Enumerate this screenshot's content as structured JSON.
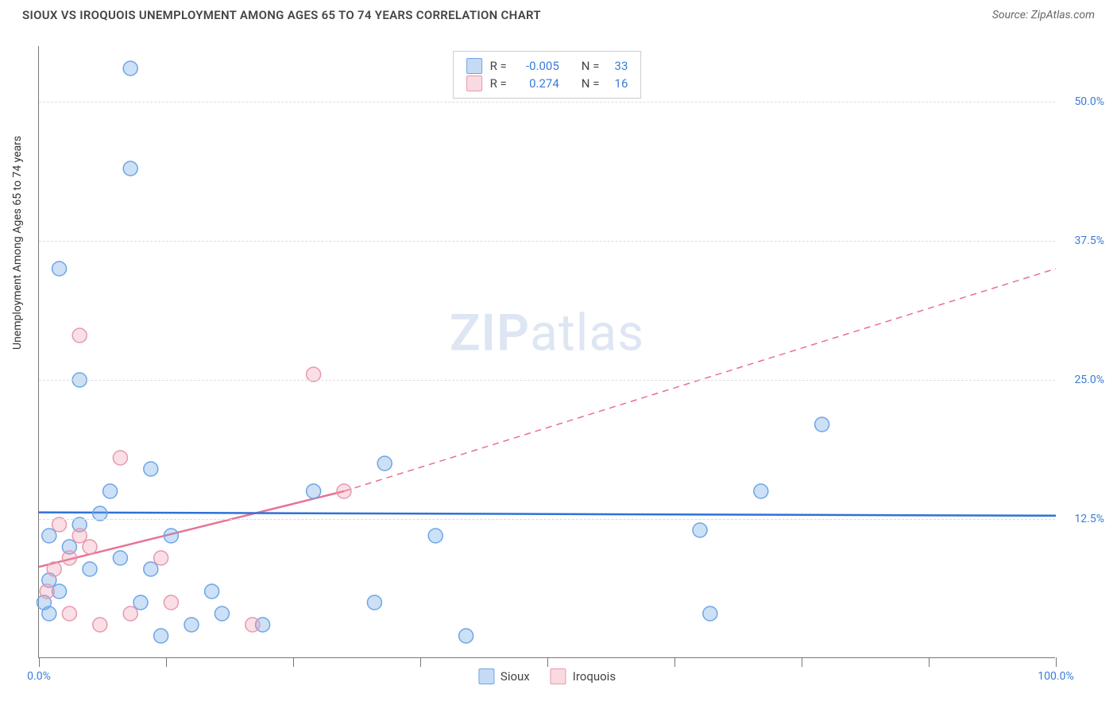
{
  "header": {
    "title": "SIOUX VS IROQUOIS UNEMPLOYMENT AMONG AGES 65 TO 74 YEARS CORRELATION CHART",
    "source": "Source: ZipAtlas.com"
  },
  "chart": {
    "type": "scatter",
    "y_label": "Unemployment Among Ages 65 to 74 years",
    "watermark": {
      "bold": "ZIP",
      "rest": "atlas"
    },
    "background_color": "#ffffff",
    "grid_color": "#dddddd",
    "axis_color": "#777777",
    "label_color": "#3b7dd8",
    "xlim": [
      0,
      100
    ],
    "ylim": [
      0,
      55
    ],
    "x_ticks": [
      {
        "pos": 0,
        "label": "0.0%"
      },
      {
        "pos": 12.5
      },
      {
        "pos": 25
      },
      {
        "pos": 37.5
      },
      {
        "pos": 50
      },
      {
        "pos": 62.5
      },
      {
        "pos": 75
      },
      {
        "pos": 87.5
      },
      {
        "pos": 100,
        "label": "100.0%"
      }
    ],
    "y_ticks": [
      {
        "pos": 12.5,
        "label": "12.5%"
      },
      {
        "pos": 25,
        "label": "25.0%"
      },
      {
        "pos": 37.5,
        "label": "37.5%"
      },
      {
        "pos": 50,
        "label": "50.0%"
      }
    ],
    "series": [
      {
        "name": "Sioux",
        "color_fill": "rgba(110,165,230,0.35)",
        "color_stroke": "#6ea5e6",
        "marker_radius": 9,
        "r_label": "R =",
        "r_value": "-0.005",
        "n_label": "N =",
        "n_value": "33",
        "trend": {
          "solid_start": {
            "x": 0,
            "y": 13.1
          },
          "solid_end": {
            "x": 100,
            "y": 12.8
          },
          "dash_start": null,
          "dash_end": null,
          "stroke": "#2f72d6",
          "width": 2.5
        },
        "points": [
          {
            "x": 2,
            "y": 35
          },
          {
            "x": 9,
            "y": 53
          },
          {
            "x": 9,
            "y": 44
          },
          {
            "x": 4,
            "y": 25
          },
          {
            "x": 7,
            "y": 15
          },
          {
            "x": 11,
            "y": 17
          },
          {
            "x": 27,
            "y": 15
          },
          {
            "x": 34,
            "y": 17.5
          },
          {
            "x": 39,
            "y": 11
          },
          {
            "x": 65,
            "y": 11.5
          },
          {
            "x": 71,
            "y": 15
          },
          {
            "x": 77,
            "y": 21
          },
          {
            "x": 66,
            "y": 4
          },
          {
            "x": 42,
            "y": 2
          },
          {
            "x": 33,
            "y": 5
          },
          {
            "x": 22,
            "y": 3
          },
          {
            "x": 18,
            "y": 4
          },
          {
            "x": 15,
            "y": 3
          },
          {
            "x": 12,
            "y": 2
          },
          {
            "x": 10,
            "y": 5
          },
          {
            "x": 13,
            "y": 11
          },
          {
            "x": 11,
            "y": 8
          },
          {
            "x": 8,
            "y": 9
          },
          {
            "x": 6,
            "y": 13
          },
          {
            "x": 4,
            "y": 12
          },
          {
            "x": 5,
            "y": 8
          },
          {
            "x": 3,
            "y": 10
          },
          {
            "x": 1,
            "y": 7
          },
          {
            "x": 2,
            "y": 6
          },
          {
            "x": 1,
            "y": 4
          },
          {
            "x": 0.5,
            "y": 5
          },
          {
            "x": 1,
            "y": 11
          },
          {
            "x": 17,
            "y": 6
          }
        ]
      },
      {
        "name": "Iroquois",
        "color_fill": "rgba(240,150,170,0.30)",
        "color_stroke": "#e898ae",
        "marker_radius": 9,
        "r_label": "R =",
        "r_value": "0.274",
        "n_label": "N =",
        "n_value": "16",
        "trend": {
          "solid_start": {
            "x": 0,
            "y": 8.2
          },
          "solid_end": {
            "x": 30,
            "y": 15
          },
          "dash_start": {
            "x": 30,
            "y": 15
          },
          "dash_end": {
            "x": 100,
            "y": 35
          },
          "stroke": "#e87192",
          "width": 2.5
        },
        "points": [
          {
            "x": 4,
            "y": 29
          },
          {
            "x": 27,
            "y": 25.5
          },
          {
            "x": 30,
            "y": 15
          },
          {
            "x": 8,
            "y": 18
          },
          {
            "x": 12,
            "y": 9
          },
          {
            "x": 21,
            "y": 3
          },
          {
            "x": 13,
            "y": 5
          },
          {
            "x": 9,
            "y": 4
          },
          {
            "x": 6,
            "y": 3
          },
          {
            "x": 3,
            "y": 4
          },
          {
            "x": 5,
            "y": 10
          },
          {
            "x": 3,
            "y": 9
          },
          {
            "x": 1.5,
            "y": 8
          },
          {
            "x": 4,
            "y": 11
          },
          {
            "x": 2,
            "y": 12
          },
          {
            "x": 0.8,
            "y": 6
          }
        ]
      }
    ],
    "legend": [
      {
        "swatch": "sw-blue",
        "label": "Sioux"
      },
      {
        "swatch": "sw-pink",
        "label": "Iroquois"
      }
    ]
  }
}
